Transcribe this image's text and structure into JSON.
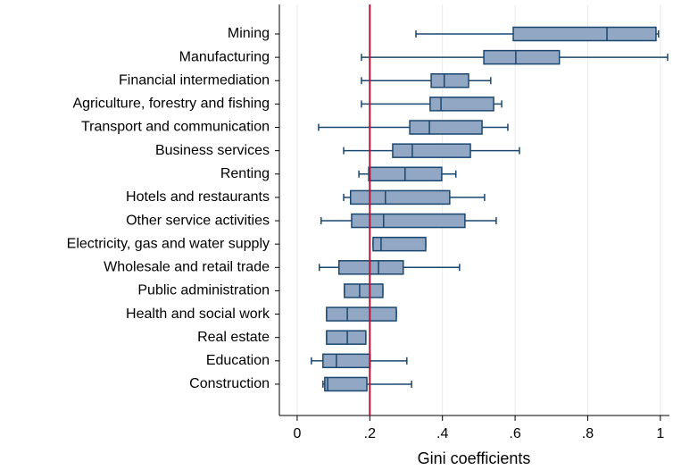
{
  "chart_data": {
    "type": "box",
    "x_label": "Gini coefficients",
    "categories": [
      "Mining",
      "Manufacturing",
      "Financial intermediation",
      "Agriculture, forestry and fishing",
      "Transport and communication",
      "Business services",
      "Renting",
      "Hotels and restaurants",
      "Other service activities",
      "Electricity, gas and water supply",
      "Wholesale and retail trade",
      "Public administration",
      "Health and social work",
      "Real estate",
      "Education",
      "Construction"
    ],
    "whisker_low": [
      0.327,
      0.177,
      0.177,
      0.177,
      0.059,
      0.128,
      0.17,
      0.128,
      0.066,
      0.209,
      0.061,
      0.13,
      0.081,
      0.081,
      0.039,
      0.071
    ],
    "q1": [
      0.595,
      0.514,
      0.369,
      0.366,
      0.31,
      0.263,
      0.197,
      0.147,
      0.15,
      0.209,
      0.115,
      0.13,
      0.081,
      0.081,
      0.071,
      0.076
    ],
    "median": [
      0.853,
      0.602,
      0.405,
      0.396,
      0.364,
      0.317,
      0.297,
      0.243,
      0.238,
      0.231,
      0.224,
      0.172,
      0.138,
      0.138,
      0.108,
      0.084
    ],
    "q3": [
      0.988,
      0.722,
      0.472,
      0.541,
      0.509,
      0.477,
      0.398,
      0.42,
      0.462,
      0.354,
      0.292,
      0.236,
      0.273,
      0.189,
      0.201,
      0.192
    ],
    "whisker_high": [
      0.995,
      1.02,
      0.533,
      0.563,
      0.58,
      0.612,
      0.437,
      0.516,
      0.548,
      0.354,
      0.447,
      0.236,
      0.273,
      0.189,
      0.302,
      0.315
    ],
    "box_color": "#91a7c3",
    "line_color": "#1a476f",
    "reference_line": 0.2,
    "reference_color": "#b0163a",
    "xlim": [
      -0.049,
      1.025
    ],
    "xticks": [
      0,
      {
        "value": 0.2,
        "label": ".2"
      },
      {
        "value": 0.4,
        "label": ".4"
      },
      {
        "value": 0.6,
        "label": ".6"
      },
      {
        "value": 0.8,
        "label": ".8"
      },
      1
    ],
    "grid": true
  }
}
